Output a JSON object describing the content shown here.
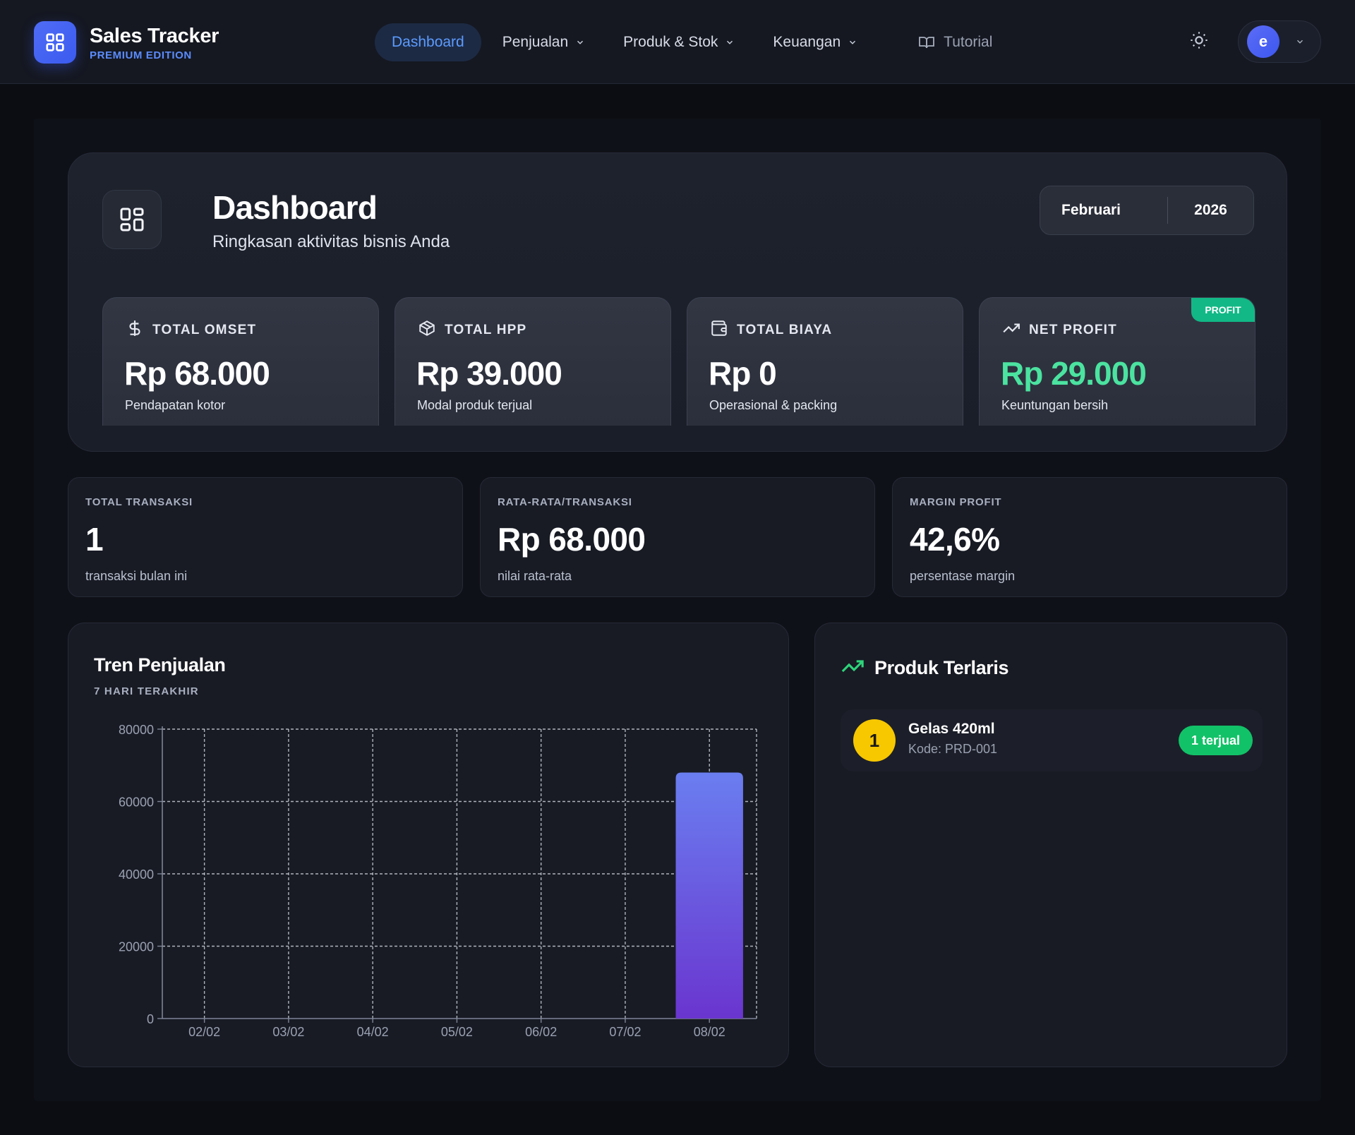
{
  "app": {
    "title": "Sales Tracker",
    "edition": "PREMIUM EDITION",
    "logo_icon": "grid-icon"
  },
  "nav": {
    "items": [
      {
        "label": "Dashboard",
        "active": true
      },
      {
        "label": "Penjualan",
        "dropdown": true
      },
      {
        "label": "Produk & Stok",
        "dropdown": true
      },
      {
        "label": "Keuangan",
        "dropdown": true
      },
      {
        "label": "Tutorial",
        "icon": "book-icon"
      }
    ],
    "theme_icon": "sun-icon",
    "user_initial": "e"
  },
  "header": {
    "title": "Dashboard",
    "subtitle": "Ringkasan aktivitas bisnis Anda",
    "period": {
      "month": "Februari",
      "year": "2026"
    }
  },
  "kpis": [
    {
      "icon": "dollar-icon",
      "label": "TOTAL OMSET",
      "value": "Rp 68.000",
      "note": "Pendapatan kotor"
    },
    {
      "icon": "box-icon",
      "label": "TOTAL HPP",
      "value": "Rp 39.000",
      "note": "Modal produk terjual"
    },
    {
      "icon": "wallet-icon",
      "label": "TOTAL BIAYA",
      "value": "Rp 0",
      "note": "Operasional & packing"
    },
    {
      "icon": "trending-up-icon",
      "label": "NET PROFIT",
      "value": "Rp 29.000",
      "note": "Keuntungan bersih",
      "badge": "PROFIT",
      "accent": "#4be3a0"
    }
  ],
  "stats": [
    {
      "label": "TOTAL TRANSAKSI",
      "value": "1",
      "note": "transaksi bulan ini"
    },
    {
      "label": "RATA-RATA/TRANSAKSI",
      "value": "Rp 68.000",
      "note": "nilai rata-rata"
    },
    {
      "label": "MARGIN PROFIT",
      "value": "42,6%",
      "note": "persentase margin"
    }
  ],
  "trend": {
    "title": "Tren Penjualan",
    "subtitle": "7 HARI TERAKHIR"
  },
  "chart_data": {
    "type": "bar",
    "categories": [
      "02/02",
      "03/02",
      "04/02",
      "05/02",
      "06/02",
      "07/02",
      "08/02"
    ],
    "values": [
      0,
      0,
      0,
      0,
      0,
      0,
      68000
    ],
    "ylim": [
      0,
      80000
    ],
    "yticks": [
      0,
      20000,
      40000,
      60000,
      80000
    ],
    "grid": true,
    "bar_gradient": [
      "#6a7ef0",
      "#6a35cf"
    ]
  },
  "top_products": {
    "title": "Produk Terlaris",
    "icon": "trending-up-icon",
    "items": [
      {
        "rank": "1",
        "name": "Gelas 420ml",
        "code": "Kode: PRD-001",
        "sold": "1 terjual"
      }
    ]
  }
}
